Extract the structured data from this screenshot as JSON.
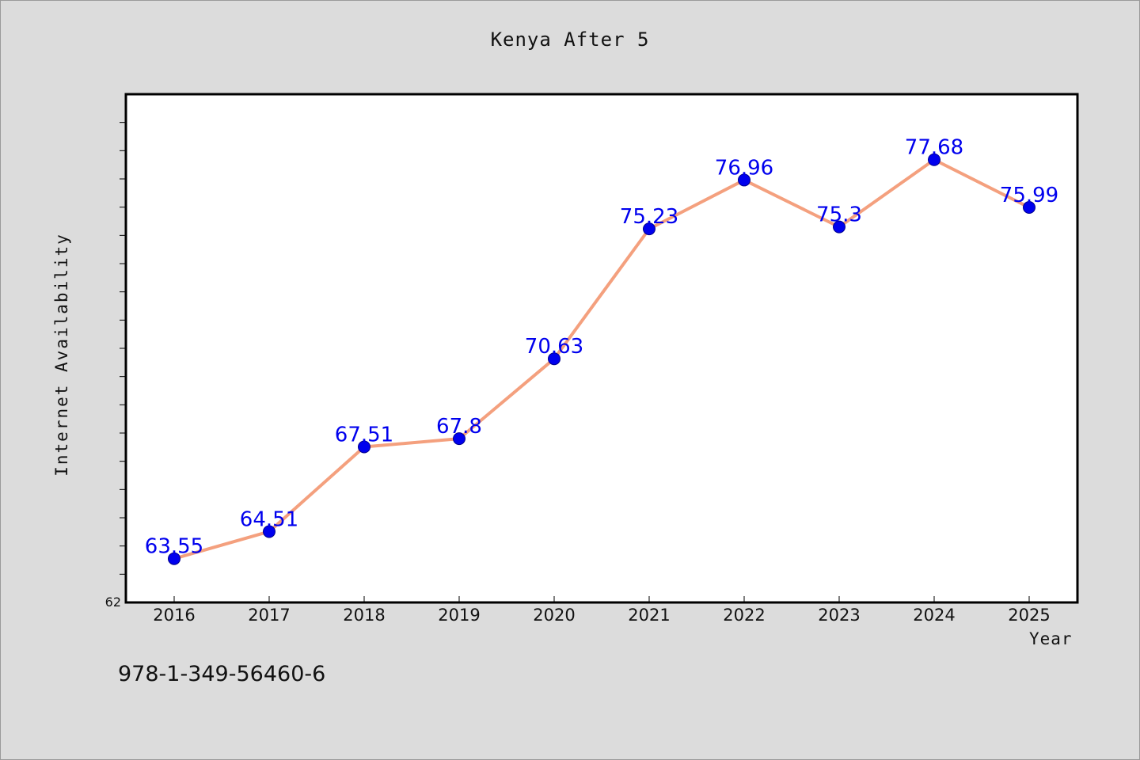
{
  "chart_data": {
    "type": "line",
    "title": "Kenya After 5",
    "xlabel": "Year",
    "ylabel": "Internet Availability",
    "categories": [
      "2016",
      "2017",
      "2018",
      "2019",
      "2020",
      "2021",
      "2022",
      "2023",
      "2024",
      "2025"
    ],
    "values": [
      63.55,
      64.51,
      67.51,
      67.8,
      70.63,
      75.23,
      76.96,
      75.3,
      77.68,
      75.99
    ],
    "data_labels": [
      "63.55",
      "64.51",
      "67.51",
      "67.8",
      "70.63",
      "75.23",
      "76.96",
      "75.3",
      "77.68",
      "75.99"
    ],
    "ylim": [
      62,
      80
    ],
    "ytick_label": "62",
    "grid": false,
    "line_color": "#f4a07e",
    "marker_color": "#0000ee",
    "label_color": "#0000ee"
  },
  "footer": {
    "code": "978-1-349-56460-6"
  }
}
